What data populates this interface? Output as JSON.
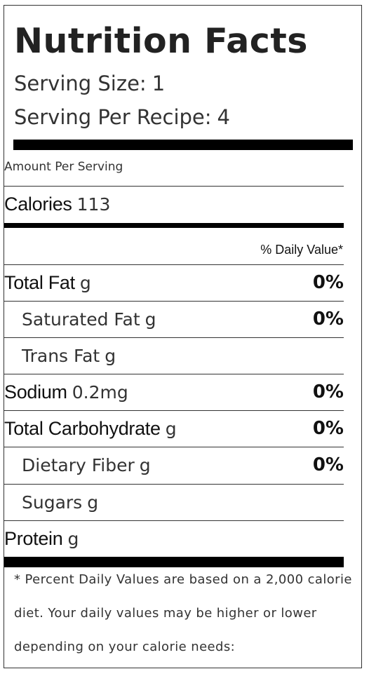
{
  "title": "Nutrition Facts",
  "serving_size": {
    "label": "Serving Size:",
    "value": "1"
  },
  "servings_per_recipe": {
    "label": "Serving Per Recipe:",
    "value": "4"
  },
  "amount_per_serving": "Amount Per Serving",
  "calories": {
    "label": "Calories",
    "value": "113"
  },
  "daily_value_header": "% Daily Value*",
  "nutrients": [
    {
      "name": "Total Fat",
      "amount": "g",
      "percent": "0%"
    },
    {
      "name": "Saturated Fat",
      "amount": "g",
      "percent": "0%"
    },
    {
      "name": "Trans Fat",
      "amount": "g",
      "percent": ""
    },
    {
      "name": "Sodium",
      "amount": "0.2mg",
      "percent": "0%"
    },
    {
      "name": "Total Carbohydrate",
      "amount": "g",
      "percent": "0%"
    },
    {
      "name": "Dietary Fiber",
      "amount": "g",
      "percent": "0%"
    },
    {
      "name": "Sugars",
      "amount": "g",
      "percent": ""
    },
    {
      "name": "Protein",
      "amount": "g",
      "percent": ""
    }
  ],
  "footnote": "* Percent Daily Values are based on a 2,000 calorie diet. Your daily values may be higher or lower depending on your calorie needs:"
}
